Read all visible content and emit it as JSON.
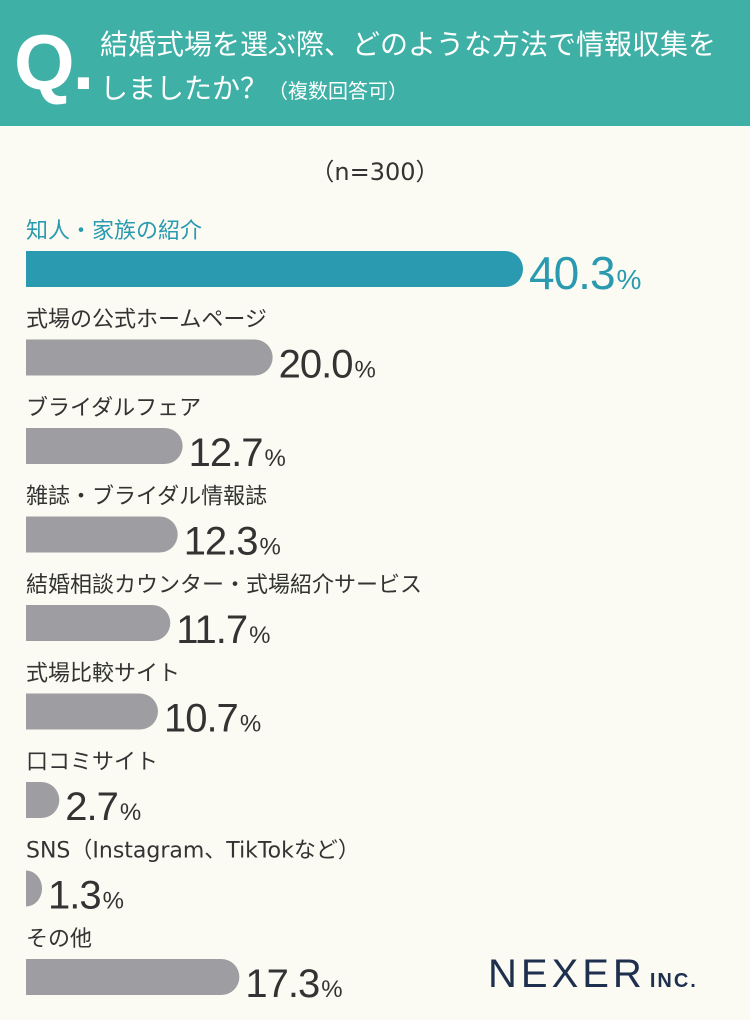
{
  "header": {
    "q_mark": "Q.",
    "question_line1": "結婚式場を選ぶ際、どのような方法で情報収集を",
    "question_line2": "しましたか？",
    "question_note": "（複数回答可）"
  },
  "sample_size": "（n=300）",
  "colors": {
    "header_bg": "#3eb0a6",
    "highlight": "#2a9ab0",
    "bar_gray": "#9d9da2",
    "background": "#fbfbf3"
  },
  "chart_data": {
    "type": "bar",
    "orientation": "horizontal",
    "categories": [
      "知人・家族の紹介",
      "式場の公式ホームページ",
      "ブライダルフェア",
      "雑誌・ブライダル情報誌",
      "結婚相談カウンター・式場紹介サービス",
      "式場比較サイト",
      "口コミサイト",
      "SNS（Instagram、TikTokなど）",
      "その他"
    ],
    "values": [
      40.3,
      20.0,
      12.7,
      12.3,
      11.7,
      10.7,
      2.7,
      1.3,
      17.3
    ],
    "value_labels": [
      "40.3",
      "20.0",
      "12.7",
      "12.3",
      "11.7",
      "10.7",
      "2.7",
      "1.3",
      "17.3"
    ],
    "unit": "%",
    "highlight_index": 0
  },
  "logo": {
    "main": "NEXER",
    "suffix": "INC."
  }
}
